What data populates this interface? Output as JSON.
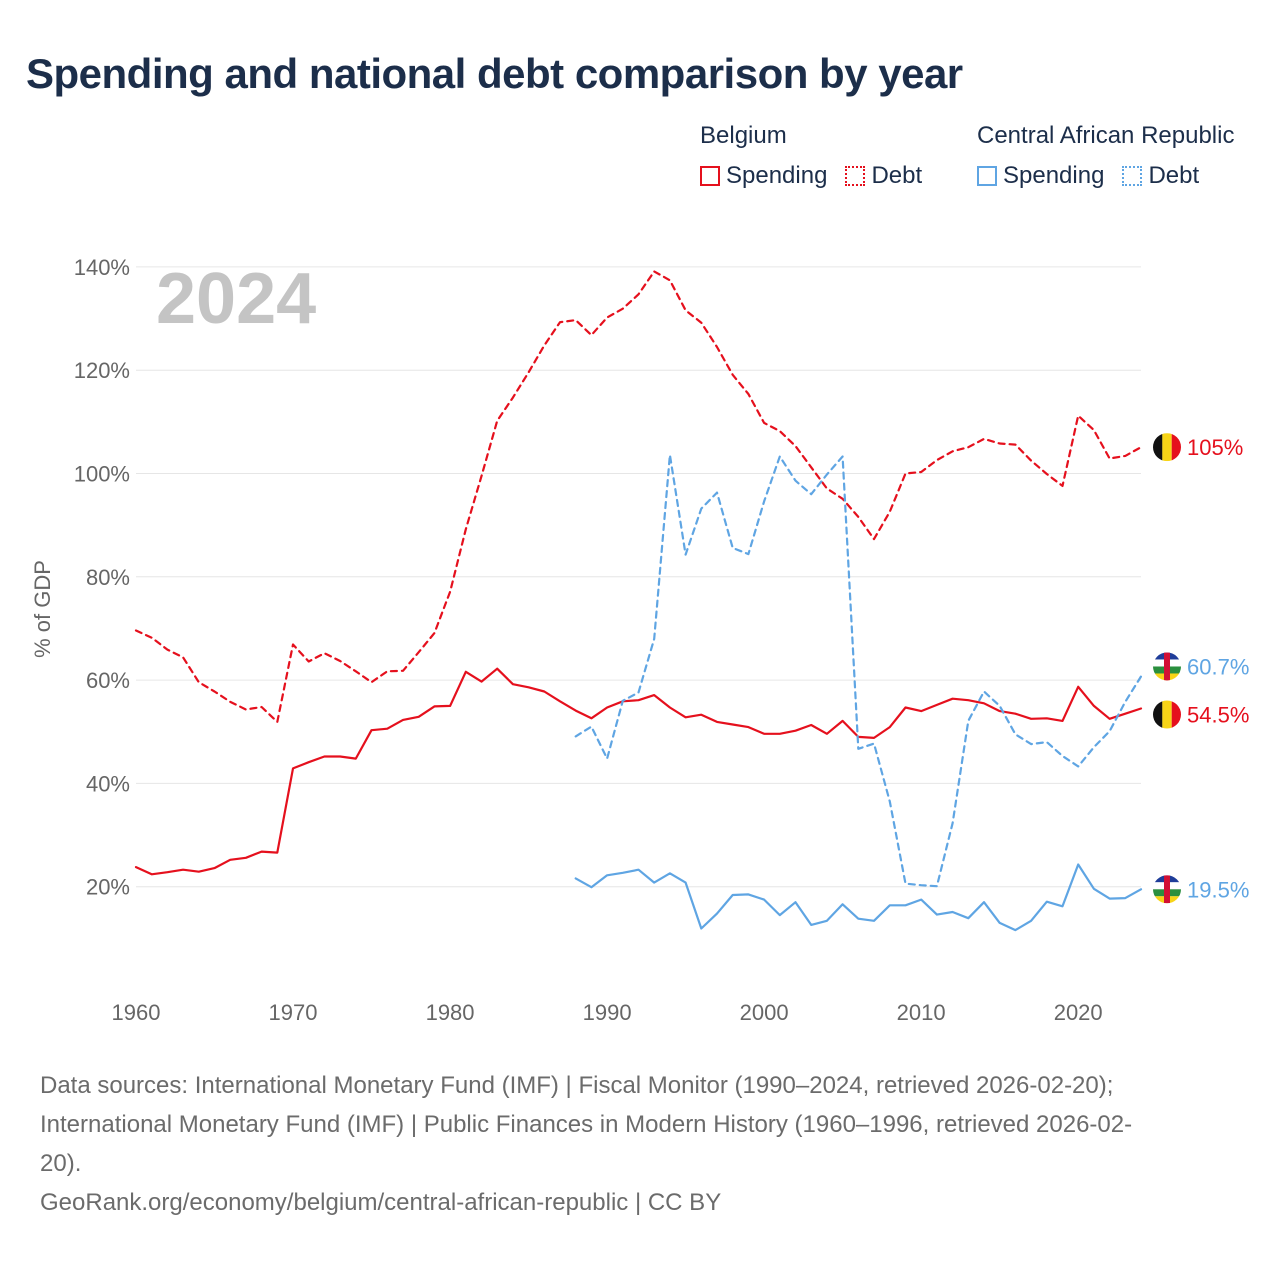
{
  "title": "Spending and national debt comparison by year",
  "legend": {
    "groups": [
      {
        "country": "Belgium",
        "color": "#e5101d",
        "items": [
          {
            "label": "Spending",
            "style": "solid"
          },
          {
            "label": "Debt",
            "style": "dotted"
          }
        ]
      },
      {
        "country": "Central African Republic",
        "color": "#5fa5e3",
        "items": [
          {
            "label": "Spending",
            "style": "solid"
          },
          {
            "label": "Debt",
            "style": "dotted"
          }
        ]
      }
    ]
  },
  "chart_data": {
    "type": "line",
    "year_watermark": "2024",
    "ylabel": "% of GDP",
    "xlabel": "",
    "xlim": [
      1960,
      2025
    ],
    "ylim": [
      0,
      145
    ],
    "yticks": [
      20,
      40,
      60,
      80,
      100,
      120,
      140
    ],
    "ytick_labels": [
      "20%",
      "40%",
      "60%",
      "80%",
      "100%",
      "120%",
      "140%"
    ],
    "xticks": [
      1960,
      1970,
      1980,
      1990,
      2000,
      2010,
      2020
    ],
    "xtick_labels": [
      "1960",
      "1970",
      "1980",
      "1990",
      "2000",
      "2010",
      "2020"
    ],
    "series": [
      {
        "name": "Belgium Debt",
        "country": "Belgium",
        "metric": "Debt",
        "color": "#e5101d",
        "dash": "dashed",
        "start_year": 1960,
        "end_label": "105%",
        "values": [
          69.6,
          68.2,
          65.9,
          64.4,
          59.6,
          57.8,
          55.8,
          54.3,
          54.8,
          51.9,
          66.9,
          63.6,
          65.2,
          63.7,
          61.7,
          59.6,
          61.7,
          61.8,
          65.4,
          69.1,
          77.1,
          89.2,
          99.5,
          110.2,
          114.7,
          119.6,
          124.8,
          129.3,
          129.7,
          126.8,
          130.2,
          131.9,
          134.7,
          139.1,
          137.4,
          131.6,
          129.2,
          124.5,
          119.1,
          115.4,
          109.8,
          108.2,
          105.3,
          101.2,
          97.1,
          95.1,
          91.6,
          87.3,
          92.6,
          100.0,
          100.3,
          102.6,
          104.3,
          105.1,
          106.7,
          105.8,
          105.6,
          102.5,
          99.9,
          97.6,
          111.2,
          108.4,
          102.9,
          103.4,
          105.1
        ]
      },
      {
        "name": "Belgium Spending",
        "country": "Belgium",
        "metric": "Spending",
        "color": "#e5101d",
        "dash": "solid",
        "start_year": 1960,
        "end_label": "54.5%",
        "values": [
          23.8,
          22.4,
          22.8,
          23.3,
          22.9,
          23.6,
          25.2,
          25.6,
          26.8,
          26.6,
          42.9,
          44.1,
          45.2,
          45.2,
          44.8,
          50.3,
          50.6,
          52.3,
          52.9,
          54.9,
          55.0,
          61.6,
          59.7,
          62.2,
          59.2,
          58.6,
          57.8,
          55.9,
          54.1,
          52.6,
          54.7,
          55.9,
          56.1,
          57.1,
          54.7,
          52.8,
          53.3,
          51.9,
          51.4,
          50.9,
          49.6,
          49.6,
          50.2,
          51.3,
          49.6,
          52.1,
          49.0,
          48.8,
          50.9,
          54.7,
          54.0,
          55.2,
          56.4,
          56.1,
          55.5,
          54.0,
          53.5,
          52.5,
          52.6,
          52.1,
          58.7,
          55.0,
          52.5,
          53.5,
          54.5
        ]
      },
      {
        "name": "Central African Republic Debt",
        "country": "Central African Republic",
        "metric": "Debt",
        "color": "#5fa5e3",
        "dash": "dashed",
        "start_year": 1988,
        "end_label": "60.7%",
        "values": [
          49.1,
          51.0,
          44.8,
          56.0,
          57.6,
          68.0,
          103.6,
          84.3,
          93.2,
          96.3,
          85.6,
          84.4,
          94.6,
          103.3,
          98.6,
          96.0,
          99.8,
          103.3,
          46.7,
          47.7,
          36.5,
          20.6,
          20.3,
          20.1,
          32.3,
          52.1,
          57.8,
          55.0,
          49.5,
          47.6,
          48.0,
          45.3,
          43.3,
          47.0,
          50.1,
          55.8,
          60.7
        ]
      },
      {
        "name": "Central African Republic Spending",
        "country": "Central African Republic",
        "metric": "Spending",
        "color": "#5fa5e3",
        "dash": "solid",
        "start_year": 1988,
        "end_label": "19.5%",
        "values": [
          21.6,
          19.9,
          22.2,
          22.7,
          23.3,
          20.8,
          22.6,
          20.8,
          11.9,
          14.8,
          18.4,
          18.5,
          17.5,
          14.5,
          17.0,
          12.6,
          13.4,
          16.6,
          13.8,
          13.4,
          16.4,
          16.4,
          17.5,
          14.6,
          15.1,
          13.9,
          17.0,
          13.0,
          11.6,
          13.4,
          17.1,
          16.2,
          24.3,
          19.6,
          17.7,
          17.8,
          19.5
        ]
      }
    ]
  },
  "footer": {
    "sources_line1": "Data sources: International Monetary Fund (IMF) | Fiscal Monitor (1990–2024, retrieved 2026-02-20);",
    "sources_line2": "International Monetary Fund (IMF) | Public Finances in Modern History (1960–1996, retrieved 2026-02-",
    "sources_line3": "20).",
    "credit": "GeoRank.org/economy/belgium/central-african-republic | CC BY"
  }
}
